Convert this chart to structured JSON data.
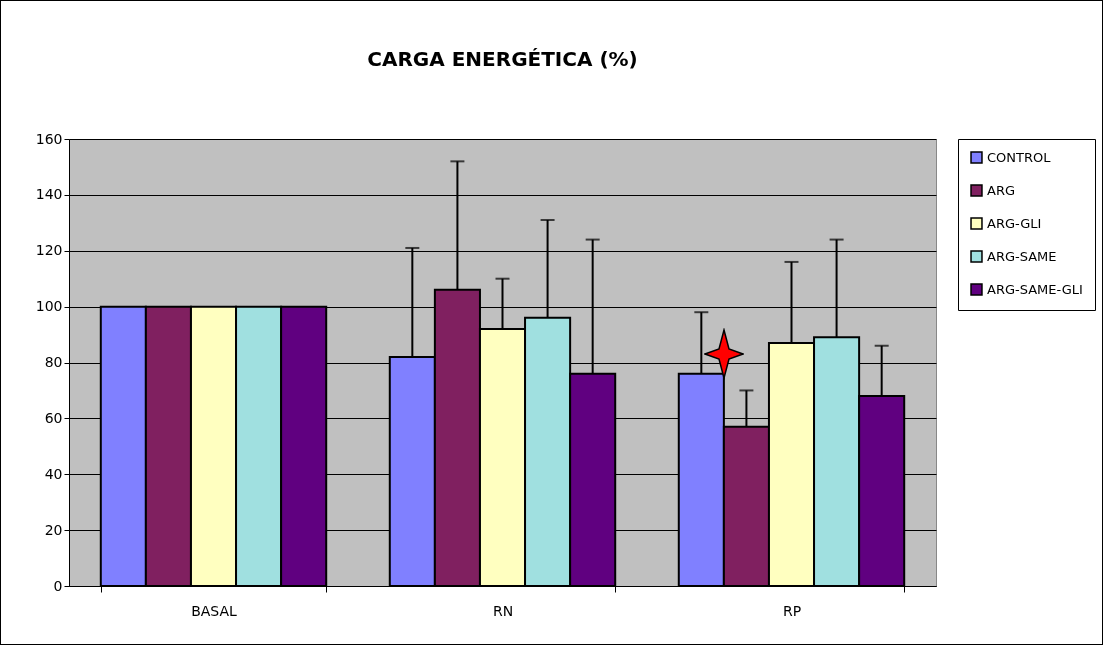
{
  "chart_data": {
    "type": "bar",
    "title": "CARGA ENERGÉTICA (%)",
    "categories": [
      "BASAL",
      "RN",
      "RP"
    ],
    "series": [
      {
        "name": "CONTROL",
        "color": "#8080ff",
        "values": [
          100,
          82,
          76
        ],
        "errors": [
          null,
          [
            82,
            121
          ],
          [
            76,
            98
          ]
        ]
      },
      {
        "name": "ARG",
        "color": "#802060",
        "values": [
          100,
          106,
          57
        ],
        "errors": [
          null,
          [
            106,
            152
          ],
          [
            57,
            70
          ]
        ]
      },
      {
        "name": "ARG-GLI",
        "color": "#ffffc0",
        "values": [
          100,
          92,
          87
        ],
        "errors": [
          null,
          [
            92,
            110
          ],
          [
            87,
            116
          ]
        ]
      },
      {
        "name": "ARG-SAME",
        "color": "#a0e0e0",
        "values": [
          100,
          96,
          89
        ],
        "errors": [
          null,
          [
            96,
            131
          ],
          [
            89,
            124
          ]
        ]
      },
      {
        "name": "ARG-SAME-GLI",
        "color": "#600080",
        "values": [
          100,
          76,
          68
        ],
        "errors": [
          null,
          [
            76,
            124
          ],
          [
            68,
            86
          ]
        ]
      }
    ],
    "ylim": [
      0,
      160
    ],
    "yticks": [
      0,
      20,
      40,
      60,
      80,
      100,
      120,
      140,
      160
    ],
    "grid": "y",
    "legend": "right"
  }
}
